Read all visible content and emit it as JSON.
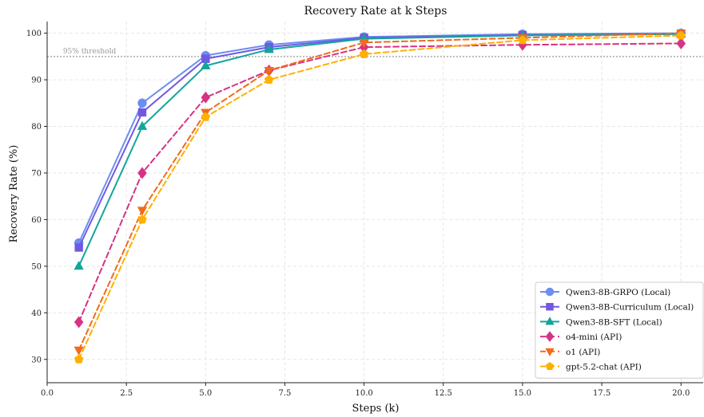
{
  "chart_data": {
    "type": "line",
    "title": "Recovery Rate at k Steps",
    "xlabel": "Steps (k)",
    "ylabel": "Recovery Rate (%)",
    "xlim": [
      0,
      20.7
    ],
    "ylim": [
      25,
      102.5
    ],
    "xticks": [
      0,
      2.5,
      5,
      7.5,
      10,
      12.5,
      15,
      17.5,
      20
    ],
    "xtick_labels": [
      "0.0",
      "2.5",
      "5.0",
      "7.5",
      "10.0",
      "12.5",
      "15.0",
      "17.5",
      "20.0"
    ],
    "yticks": [
      30,
      40,
      50,
      60,
      70,
      80,
      90,
      100
    ],
    "ytick_labels": [
      "30",
      "40",
      "50",
      "60",
      "70",
      "80",
      "90",
      "100"
    ],
    "grid": true,
    "legend_position": "bottom-right",
    "threshold": {
      "value": 95,
      "label": "95% threshold",
      "color": "#aaaaaa"
    },
    "x": [
      1,
      3,
      5,
      7,
      10,
      15,
      20
    ],
    "series": [
      {
        "name": "Qwen3-8B-GRPO (Local)",
        "values": [
          55,
          85,
          95.2,
          97.5,
          99.2,
          99.8,
          100
        ],
        "color": "#6b8ef0",
        "dash": "solid",
        "marker": "circle"
      },
      {
        "name": "Qwen3-8B-Curriculum (Local)",
        "values": [
          54,
          83,
          94.5,
          97,
          99,
          99.6,
          99.9
        ],
        "color": "#7158e2",
        "dash": "solid",
        "marker": "square"
      },
      {
        "name": "Qwen3-8B-SFT (Local)",
        "values": [
          50,
          80,
          93,
          96.5,
          98.8,
          99.5,
          99.8
        ],
        "color": "#12a59c",
        "dash": "solid",
        "marker": "triangle-up"
      },
      {
        "name": "o4-mini (API)",
        "values": [
          38,
          70,
          86.2,
          92,
          97,
          97.5,
          97.8
        ],
        "color": "#d63384",
        "dash": "dashed",
        "marker": "diamond"
      },
      {
        "name": "o1 (API)",
        "values": [
          32,
          62,
          83,
          92,
          98,
          99,
          100
        ],
        "color": "#f26a1b",
        "dash": "dashed",
        "marker": "triangle-down"
      },
      {
        "name": "gpt-5.2-chat (API)",
        "values": [
          30,
          60,
          82,
          90,
          95.5,
          98.5,
          99.5
        ],
        "color": "#ffb000",
        "dash": "dashed",
        "marker": "pentagon"
      }
    ]
  }
}
